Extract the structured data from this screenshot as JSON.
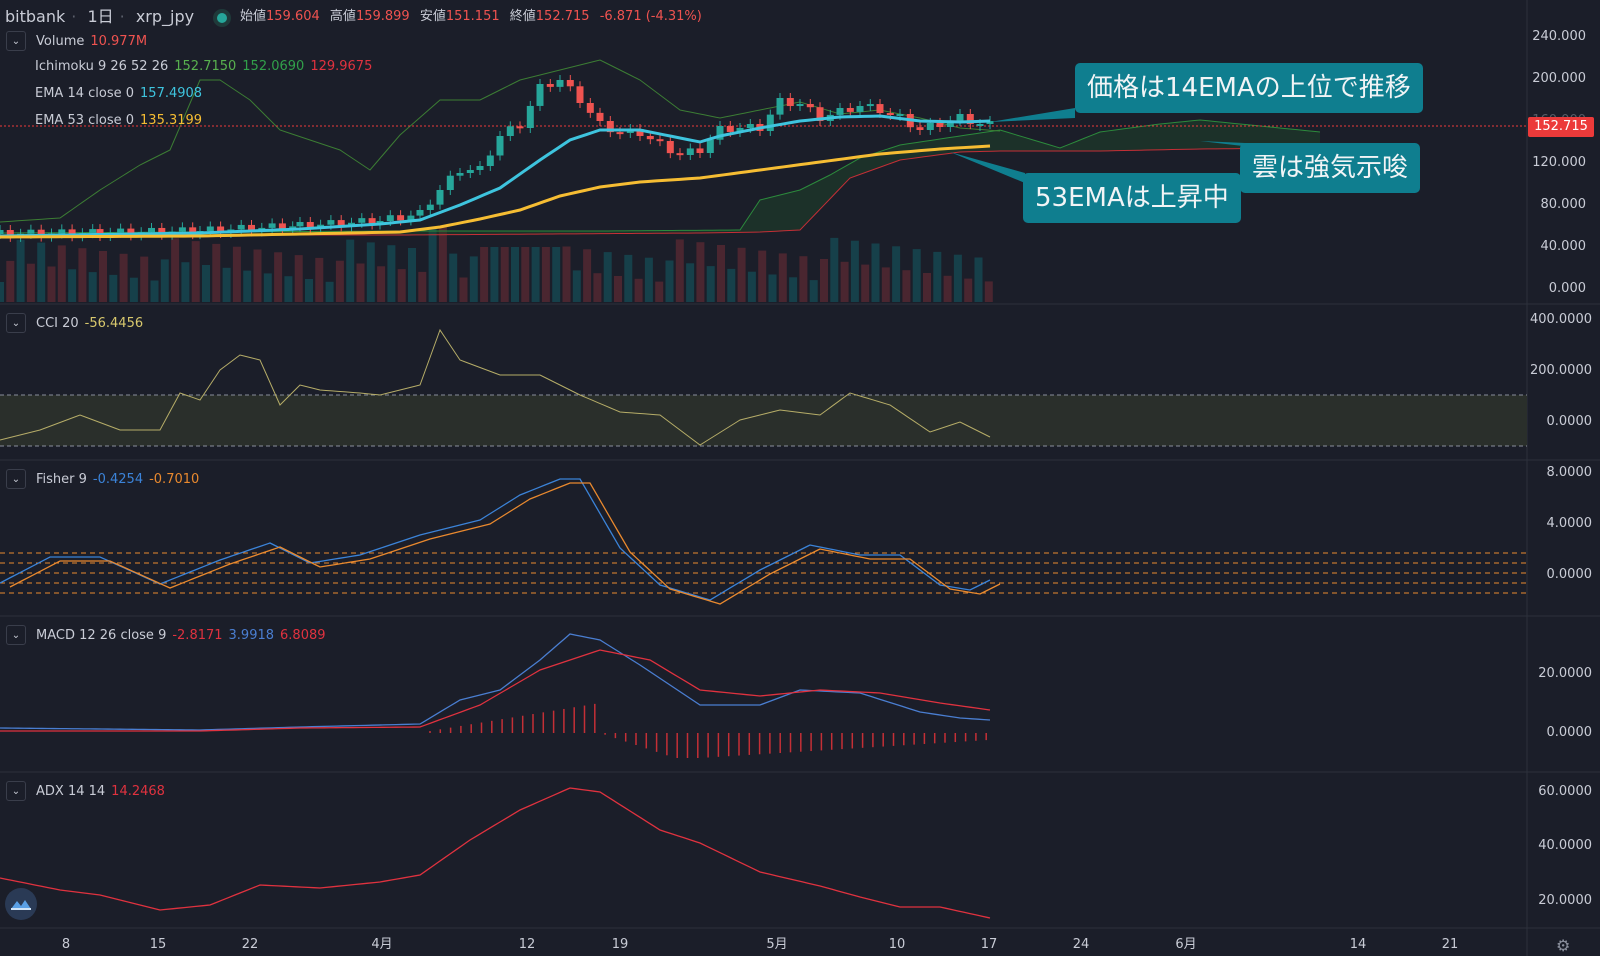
{
  "header": {
    "exchange": "bitbank",
    "interval": "1日",
    "symbol": "xrp_jpy",
    "open_label": "始値",
    "open": "159.604",
    "high_label": "高値",
    "high": "159.899",
    "low_label": "安値",
    "low": "151.151",
    "close_label": "終値",
    "close": "152.715",
    "change": "-6.871 (-4.31%)"
  },
  "main_pane": {
    "volume": {
      "label": "Volume",
      "value": "10.977M"
    },
    "ichimoku": {
      "label": "Ichimoku 9 26 52 26",
      "v1": "152.7150",
      "v2": "152.0690",
      "v3": "129.9675"
    },
    "ema14": {
      "label": "EMA 14 close 0",
      "value": "157.4908"
    },
    "ema53": {
      "label": "EMA 53 close 0",
      "value": "135.3199"
    },
    "y_ticks": [
      "240.000",
      "200.000",
      "160.000",
      "120.000",
      "80.000",
      "40.000",
      "0.000"
    ],
    "current_price": "152.715"
  },
  "annotations": {
    "callout_1": "価格は14EMAの上位で推移",
    "callout_2": "雲は強気示唆",
    "callout_3": "53EMAは上昇中"
  },
  "cci_pane": {
    "label": "CCI 20",
    "value": "-56.4456",
    "y_ticks": [
      "400.0000",
      "200.0000",
      "0.0000"
    ]
  },
  "fisher_pane": {
    "label": "Fisher 9",
    "v1": "-0.4254",
    "v2": "-0.7010",
    "y_ticks": [
      "8.0000",
      "4.0000",
      "0.0000"
    ]
  },
  "macd_pane": {
    "label": "MACD 12 26 close 9",
    "v1": "-2.8171",
    "v2": "3.9918",
    "v3": "6.8089",
    "y_ticks": [
      "20.0000",
      "0.0000"
    ]
  },
  "adx_pane": {
    "label": "ADX 14 14",
    "value": "14.2468",
    "y_ticks": [
      "60.0000",
      "40.0000",
      "20.0000"
    ]
  },
  "x_axis": [
    "8",
    "15",
    "22",
    "4月",
    "12",
    "19",
    "5月",
    "10",
    "17",
    "24",
    "6月",
    "14",
    "21"
  ],
  "colors": {
    "bg": "#1b1e29",
    "up": "#26a69a",
    "down": "#ef5350",
    "ema14": "#3ec4de",
    "ema53": "#f6bd33",
    "ichi_green": "#31a04a",
    "ichi_red": "#e0323f",
    "cci": "#b6ad68",
    "fisher_blue": "#3b83d8",
    "fisher_orange": "#e9892e",
    "macd_blue": "#4a7ed1",
    "macd_red": "#e0323f",
    "adx": "#e0323f"
  },
  "icons": {
    "collapse": "chevron-down-icon",
    "logo": "tradingview-logo-icon",
    "settings": "gear-icon"
  }
}
